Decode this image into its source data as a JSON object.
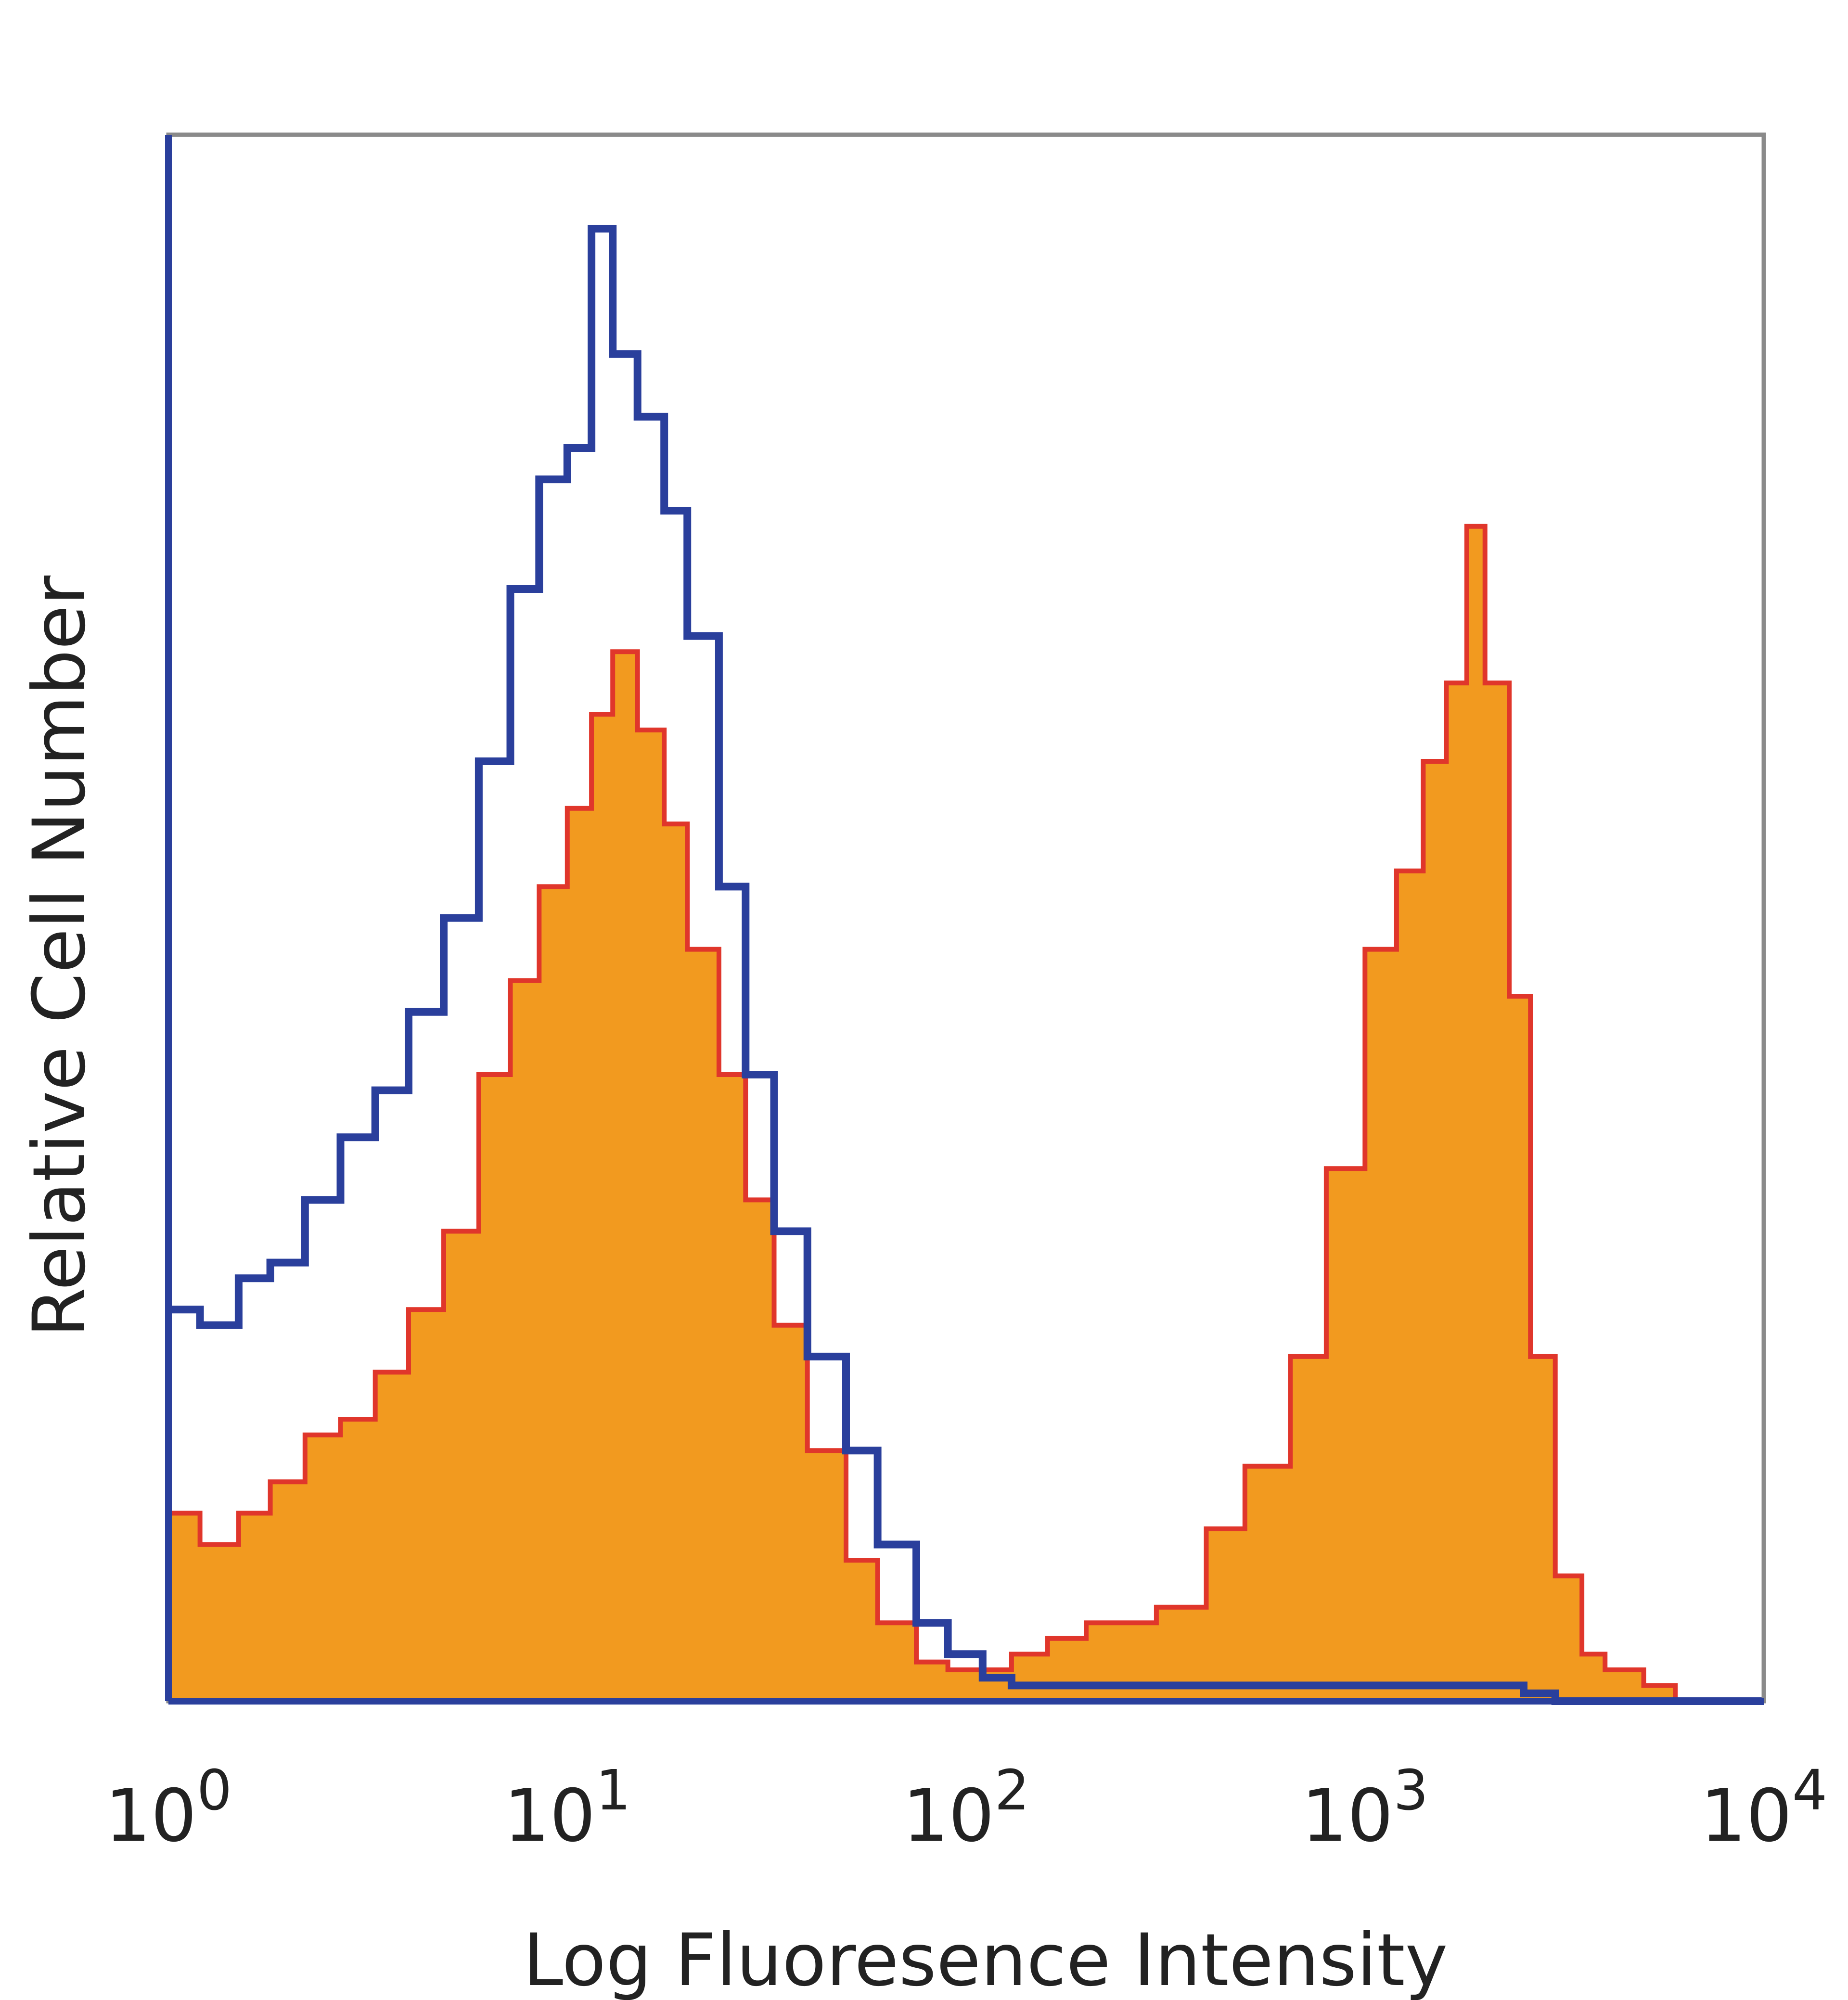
{
  "chart_data": {
    "type": "area",
    "title": "",
    "xlabel": "Log Fluoresence Intensity",
    "ylabel": "Relative Cell Number",
    "x_scale": "log",
    "xlim": [
      1,
      10000
    ],
    "ylim": [
      0,
      100
    ],
    "grid": false,
    "y_ticks_shown": false,
    "x_tick_labels": [
      {
        "base": "10",
        "exp": "0"
      },
      {
        "base": "10",
        "exp": "1"
      },
      {
        "base": "10",
        "exp": "2"
      },
      {
        "base": "10",
        "exp": "3"
      },
      {
        "base": "10",
        "exp": "4"
      }
    ],
    "series": [
      {
        "role": "control",
        "style": "outline",
        "color": "#2a3f9c",
        "x": [
          1,
          1.2,
          1.5,
          1.8,
          2.2,
          2.7,
          3.3,
          4,
          4.9,
          6,
          7.2,
          8.5,
          10,
          11.5,
          13,
          15,
          17.5,
          20,
          24,
          28,
          33,
          40,
          50,
          60,
          75,
          90,
          110,
          130,
          160,
          200,
          250,
          300,
          400,
          500,
          650,
          800,
          1000,
          1300,
          1600,
          2000,
          2500,
          3000,
          4000,
          5000,
          7000,
          10000
        ],
        "y": [
          25,
          24,
          27,
          28,
          32,
          36,
          39,
          44,
          50,
          60,
          71,
          78,
          80,
          94,
          86,
          82,
          76,
          68,
          52,
          40,
          30,
          22,
          16,
          10,
          5,
          3,
          1.5,
          1,
          1,
          1,
          1,
          1,
          1,
          1,
          1,
          1,
          1,
          1,
          1,
          1,
          0.5,
          0,
          0,
          0,
          0,
          0
        ]
      },
      {
        "role": "stained",
        "style": "filled",
        "color": "#f29a1f",
        "outline_color": "#e0362b",
        "x": [
          1,
          1.2,
          1.5,
          1.8,
          2.2,
          2.7,
          3.3,
          4,
          4.9,
          6,
          7.2,
          8.5,
          10,
          11.5,
          13,
          15,
          17.5,
          20,
          24,
          28,
          33,
          40,
          50,
          60,
          75,
          90,
          110,
          130,
          160,
          200,
          250,
          300,
          400,
          500,
          650,
          800,
          1000,
          1200,
          1400,
          1600,
          1800,
          2000,
          2300,
          2600,
          3000,
          3500,
          4000,
          5000,
          6000,
          7000,
          10000
        ],
        "y": [
          12,
          10,
          12,
          14,
          17,
          18,
          21,
          25,
          30,
          40,
          46,
          52,
          57,
          63,
          67,
          62,
          56,
          48,
          40,
          32,
          24,
          16,
          9,
          5,
          2.5,
          2,
          2,
          3,
          4,
          5,
          5,
          6,
          11,
          15,
          22,
          34,
          48,
          53,
          60,
          65,
          75,
          65,
          45,
          22,
          8,
          3,
          2,
          1,
          0,
          0,
          0
        ]
      }
    ]
  }
}
